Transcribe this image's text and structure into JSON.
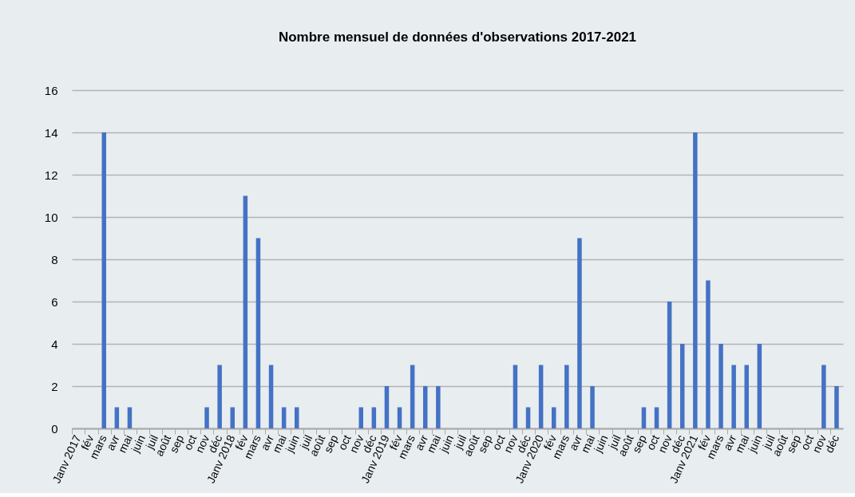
{
  "chart_data": {
    "type": "bar",
    "title": "Nombre mensuel de données d'observations 2017-2021",
    "categories": [
      "Janv 2017",
      "fév",
      "mars",
      "avr",
      "mai",
      "juin",
      "juil",
      "août",
      "sep",
      "oct",
      "nov",
      "déc",
      "Janv 2018",
      "fév",
      "mars",
      "avr",
      "mai",
      "juin",
      "juil",
      "août",
      "sep",
      "oct",
      "nov",
      "déc",
      "Janv 2019",
      "fév",
      "mars",
      "avr",
      "mai",
      "juin",
      "juil",
      "août",
      "sep",
      "oct",
      "nov",
      "déc",
      "Janv 2020",
      "fév",
      "mars",
      "avr",
      "mai",
      "juin",
      "juil",
      "août",
      "sep",
      "oct",
      "nov",
      "déc",
      "Janv 2021",
      "fév",
      "mars",
      "avr",
      "mai",
      "juin",
      "juil",
      "août",
      "sep",
      "oct",
      "nov",
      "déc"
    ],
    "values": [
      0,
      0,
      14,
      1,
      1,
      0,
      0,
      0,
      0,
      0,
      1,
      3,
      1,
      11,
      9,
      3,
      1,
      1,
      0,
      0,
      0,
      0,
      1,
      1,
      2,
      1,
      3,
      2,
      2,
      0,
      0,
      0,
      0,
      0,
      3,
      1,
      3,
      1,
      3,
      9,
      2,
      0,
      0,
      0,
      1,
      1,
      6,
      4,
      14,
      7,
      4,
      3,
      3,
      4,
      0,
      0,
      0,
      0,
      3,
      2
    ],
    "color": "#4472c4",
    "ylim": [
      0,
      16
    ],
    "yticks": [
      0,
      2,
      4,
      6,
      8,
      10,
      12,
      14,
      16
    ],
    "grid": "y"
  }
}
